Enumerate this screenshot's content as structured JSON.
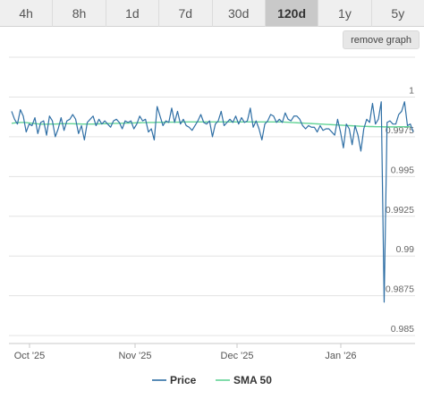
{
  "timeframes": [
    {
      "label": "4h",
      "active": false
    },
    {
      "label": "8h",
      "active": false
    },
    {
      "label": "1d",
      "active": false
    },
    {
      "label": "7d",
      "active": false
    },
    {
      "label": "30d",
      "active": false
    },
    {
      "label": "120d",
      "active": true
    },
    {
      "label": "1y",
      "active": false
    },
    {
      "label": "5y",
      "active": false
    }
  ],
  "remove_graph_label": "remove graph",
  "chart_data": {
    "type": "line",
    "x_ticks": [
      "Oct '25",
      "Nov '25",
      "Dec '25",
      "Jan '26"
    ],
    "y_ticks": [
      1,
      0.9975,
      0.995,
      0.9925,
      0.99,
      0.9875,
      0.985
    ],
    "ylim": [
      0.9845,
      1.0025
    ],
    "grid": true,
    "legend_position": "bottom",
    "series": [
      {
        "name": "Price",
        "color": "#2f6fa5",
        "values": [
          0.9991,
          0.9986,
          0.9983,
          0.9992,
          0.9988,
          0.9978,
          0.9983,
          0.9982,
          0.9987,
          0.9977,
          0.9984,
          0.9985,
          0.9976,
          0.9988,
          0.9985,
          0.9975,
          0.998,
          0.9987,
          0.9979,
          0.9985,
          0.9986,
          0.9989,
          0.9986,
          0.9977,
          0.9982,
          0.9973,
          0.9984,
          0.9986,
          0.9988,
          0.9982,
          0.9986,
          0.9983,
          0.9985,
          0.9983,
          0.9981,
          0.9985,
          0.9986,
          0.9984,
          0.998,
          0.9985,
          0.9984,
          0.9985,
          0.998,
          0.9983,
          0.9988,
          0.9985,
          0.9986,
          0.9978,
          0.998,
          0.9973,
          0.9994,
          0.9988,
          0.9982,
          0.9985,
          0.9984,
          0.9993,
          0.9984,
          0.9991,
          0.9983,
          0.9986,
          0.9982,
          0.9981,
          0.9979,
          0.9982,
          0.9985,
          0.9989,
          0.9984,
          0.9983,
          0.9985,
          0.9975,
          0.9983,
          0.9985,
          0.9991,
          0.9982,
          0.9984,
          0.9986,
          0.9984,
          0.9988,
          0.9983,
          0.9987,
          0.9984,
          0.9985,
          0.9993,
          0.9981,
          0.9985,
          0.998,
          0.9973,
          0.9983,
          0.9985,
          0.9989,
          0.9988,
          0.9984,
          0.9986,
          0.9984,
          0.999,
          0.9986,
          0.9985,
          0.9988,
          0.9988,
          0.9986,
          0.9982,
          0.998,
          0.9982,
          0.9981,
          0.9981,
          0.9978,
          0.9982,
          0.9979,
          0.998,
          0.998,
          0.9978,
          0.9976,
          0.9986,
          0.9978,
          0.9968,
          0.9983,
          0.998,
          0.997,
          0.9982,
          0.9976,
          0.9966,
          0.998,
          0.9986,
          0.9984,
          0.9996,
          0.9983,
          0.9986,
          0.9997,
          0.9871,
          0.9984,
          0.9985,
          0.9983,
          0.9983,
          0.9989,
          0.9991,
          0.9997,
          0.9982,
          0.9983,
          0.9978
        ]
      },
      {
        "name": "SMA 50",
        "color": "#63d496",
        "values": [
          0.99835,
          0.99837,
          0.99839,
          0.9984,
          0.9984,
          0.99839,
          0.99837,
          0.99835,
          0.99833,
          0.99831,
          0.9983,
          0.99829,
          0.99829,
          0.9983,
          0.9983,
          0.9983,
          0.99831,
          0.99832,
          0.99832,
          0.99832,
          0.99832,
          0.99832,
          0.99831,
          0.99831,
          0.9983,
          0.9983,
          0.9983,
          0.9983,
          0.9983,
          0.99831,
          0.99831,
          0.99832,
          0.99832,
          0.99833,
          0.99833,
          0.99834,
          0.99834,
          0.99835,
          0.99835,
          0.99836,
          0.99836,
          0.99837,
          0.99837,
          0.99838,
          0.99838,
          0.99839,
          0.99839,
          0.9984,
          0.9984,
          0.9984,
          0.99841,
          0.99841,
          0.99841,
          0.99841,
          0.99842,
          0.99842,
          0.99842,
          0.99842,
          0.99842,
          0.99843,
          0.99843,
          0.99843,
          0.99843,
          0.99843,
          0.99843,
          0.99843,
          0.99843,
          0.99843,
          0.99843,
          0.99843,
          0.99843,
          0.99843,
          0.99843,
          0.99843,
          0.99843,
          0.99843,
          0.99843,
          0.99843,
          0.99843,
          0.99843,
          0.99843,
          0.99843,
          0.99843,
          0.99843,
          0.99843,
          0.99843,
          0.99843,
          0.99843,
          0.99843,
          0.99843,
          0.99843,
          0.99843,
          0.99843,
          0.99843,
          0.99842,
          0.99841,
          0.9984,
          0.99839,
          0.99838,
          0.99837,
          0.99836,
          0.99835,
          0.99834,
          0.99833,
          0.99832,
          0.99831,
          0.9983,
          0.99829,
          0.99828,
          0.99827,
          0.99826,
          0.99825,
          0.99824,
          0.99823,
          0.99822,
          0.99821,
          0.9982,
          0.99819,
          0.99818,
          0.99817,
          0.99816,
          0.99815,
          0.99815,
          0.99814,
          0.99814,
          0.99813,
          0.99813,
          0.99813,
          0.99812,
          0.99812,
          0.99812,
          0.99812,
          0.99812,
          0.99813,
          0.99813,
          0.99813,
          0.99813,
          0.99813
        ]
      }
    ]
  }
}
